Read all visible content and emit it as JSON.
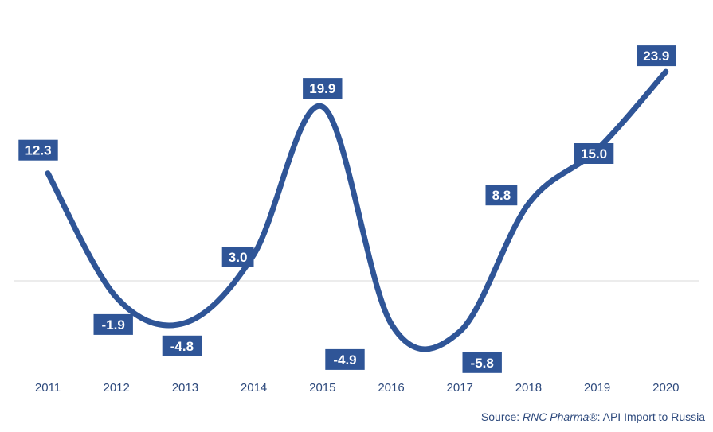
{
  "chart_data": {
    "type": "line",
    "categories": [
      "2011",
      "2012",
      "2013",
      "2014",
      "2015",
      "2016",
      "2017",
      "2018",
      "2019",
      "2020"
    ],
    "series": [
      {
        "values": [
          12.3,
          -1.9,
          -4.8,
          3.0,
          19.9,
          -4.9,
          -5.8,
          8.8,
          15.0,
          23.9
        ]
      }
    ],
    "data_labels": [
      "12.3",
      "-1.9",
      "-4.8",
      "3.0",
      "19.9",
      "-4.9",
      "-5.8",
      "8.8",
      "15.0",
      "23.9"
    ],
    "ylim": [
      -15,
      30
    ],
    "grid": false,
    "zero_line": true,
    "smooth": true,
    "colors": {
      "line": "#2f5597",
      "label_bg": "#2f5597",
      "label_text": "#ffffff",
      "axis_text": "#2e4a7d",
      "zero_line": "#d9d9d9"
    }
  },
  "source": {
    "prefix": "Source: ",
    "brand": "RNC Pharma®",
    "suffix": ": API Import to Russia"
  }
}
